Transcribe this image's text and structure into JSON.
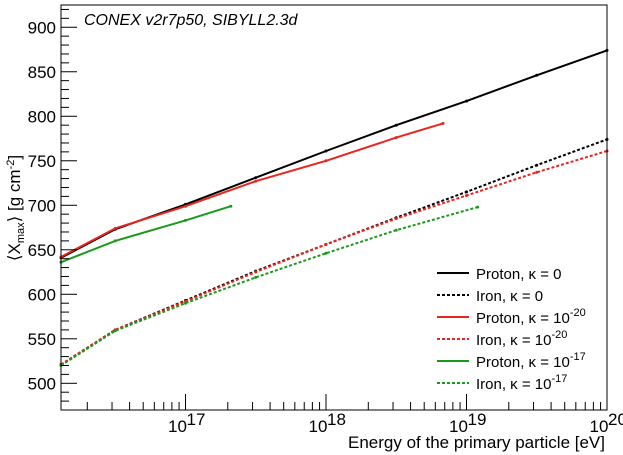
{
  "chart_data": {
    "type": "line",
    "annotation": "CONEX v2r7p50, SIBYLL2.3d",
    "xlabel": "Energy of the primary particle [eV]",
    "ylabel": "⟨X_max⟩ [g cm^-2]",
    "x_scale": "log",
    "xlim": [
      1.3e+16,
      1e+20
    ],
    "ylim": [
      470,
      925
    ],
    "y_ticks": [
      500,
      550,
      600,
      650,
      700,
      750,
      800,
      850,
      900
    ],
    "x_ticks": [
      {
        "value": 1e+17,
        "base": "10",
        "exp": "17"
      },
      {
        "value": 1e+18,
        "base": "10",
        "exp": "18"
      },
      {
        "value": 1e+19,
        "base": "10",
        "exp": "19"
      },
      {
        "value": 1e+20,
        "base": "10",
        "exp": "20"
      }
    ],
    "series": [
      {
        "name": "Proton, κ = 0",
        "label_main": "Proton, κ = 0",
        "label_exp": "",
        "color": "#000000",
        "style": "solid",
        "x": [
          1.3e+16,
          3.16e+16,
          1e+17,
          3.16e+17,
          1e+18,
          3.16e+18,
          1e+19,
          3.16e+19,
          1e+20
        ],
        "y": [
          641,
          673,
          701,
          731,
          761,
          790,
          817,
          846,
          874
        ]
      },
      {
        "name": "Iron, κ = 0",
        "label_main": "Iron, κ = 0",
        "label_exp": "",
        "color": "#000000",
        "style": "dashed",
        "x": [
          1.3e+16,
          3.16e+16,
          1e+17,
          3.16e+17,
          1e+18,
          3.16e+18,
          1e+19,
          3.16e+19,
          1e+20
        ],
        "y": [
          521,
          560,
          593,
          626,
          656,
          686,
          715,
          745,
          774
        ]
      },
      {
        "name": "Proton, κ = 10^-20",
        "label_main": "Proton, κ = 10",
        "label_exp": "-20",
        "color": "#e8251e",
        "style": "solid",
        "x": [
          1.3e+16,
          3.16e+16,
          1e+17,
          3.16e+17,
          1e+18,
          3.16e+18,
          6.8e+18
        ],
        "y": [
          642,
          674,
          699,
          727,
          750,
          776,
          792
        ]
      },
      {
        "name": "Iron, κ = 10^-20",
        "label_main": "Iron, κ = 10",
        "label_exp": "-20",
        "color": "#e8251e",
        "style": "dashed",
        "x": [
          1.3e+16,
          3.16e+16,
          1e+17,
          3.16e+17,
          1e+18,
          3.16e+18,
          1e+19,
          3.16e+19,
          1e+20
        ],
        "y": [
          521,
          560,
          592,
          625,
          656,
          685,
          711,
          737,
          761
        ]
      },
      {
        "name": "Proton, κ = 10^-17",
        "label_main": "Proton, κ = 10",
        "label_exp": "-17",
        "color": "#1a9a1a",
        "style": "solid",
        "x": [
          1.3e+16,
          3.16e+16,
          1e+17,
          2.1e+17
        ],
        "y": [
          636,
          660,
          683,
          699
        ]
      },
      {
        "name": "Iron, κ = 10^-17",
        "label_main": "Iron, κ = 10",
        "label_exp": "-17",
        "color": "#1a9a1a",
        "style": "dashed",
        "x": [
          1.3e+16,
          3.16e+16,
          1e+17,
          3.16e+17,
          1e+18,
          3.16e+18,
          1.2e+19
        ],
        "y": [
          520,
          559,
          590,
          619,
          646,
          672,
          698
        ]
      }
    ],
    "grid": false,
    "legend_position": "bottom-right"
  }
}
